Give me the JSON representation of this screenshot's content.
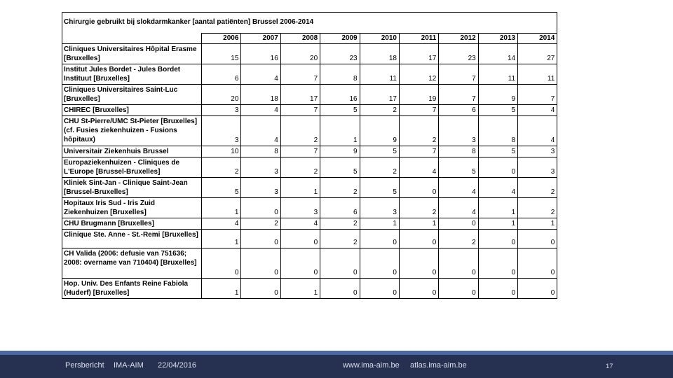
{
  "title": "Chirurgie gebruikt bij slokdarmkanker  [aantal patiënten] Brussel 2006-2014",
  "table": {
    "year_headers": [
      "2006",
      "2007",
      "2008",
      "2009",
      "2010",
      "2011",
      "2012",
      "2013",
      "2014"
    ],
    "rows": [
      {
        "label": "Cliniques Universitaires Hôpital Erasme [Bruxelles]",
        "lines": "double",
        "values": [
          15,
          16,
          20,
          23,
          18,
          17,
          23,
          14,
          27
        ]
      },
      {
        "label": "Institut Jules Bordet - Jules Bordet Instituut  [Bruxelles]",
        "lines": "double",
        "values": [
          6,
          4,
          7,
          8,
          11,
          12,
          7,
          11,
          11
        ]
      },
      {
        "label": "Cliniques Universitaires Saint-Luc [Bruxelles]",
        "lines": "double",
        "values": [
          20,
          18,
          17,
          16,
          17,
          19,
          7,
          9,
          7
        ]
      },
      {
        "label": "CHIREC [Bruxelles]",
        "lines": "single",
        "values": [
          3,
          4,
          7,
          5,
          2,
          7,
          6,
          5,
          4
        ]
      },
      {
        "label": "CHU St-Pierre/UMC St-Pieter [Bruxelles] (cf. Fusies ziekenhuizen - Fusions hôpitaux)",
        "lines": "triple",
        "values": [
          3,
          4,
          2,
          1,
          9,
          2,
          3,
          8,
          4
        ]
      },
      {
        "label": "Universitair Ziekenhuis Brussel",
        "lines": "single",
        "values": [
          10,
          8,
          7,
          9,
          5,
          7,
          8,
          5,
          3
        ]
      },
      {
        "label": "Europaziekenhuizen - Cliniques de L'Europe [Brussel-Bruxelles]",
        "lines": "double",
        "values": [
          2,
          3,
          2,
          5,
          2,
          4,
          5,
          0,
          3
        ]
      },
      {
        "label": "Kliniek Sint-Jan -  Clinique Saint-Jean [Brussel-Bruxelles]",
        "lines": "double",
        "values": [
          5,
          3,
          1,
          2,
          5,
          0,
          4,
          4,
          2
        ]
      },
      {
        "label": "Hopitaux Iris Sud - Iris Zuid Ziekenhuizen  [Bruxelles]",
        "lines": "double",
        "values": [
          1,
          0,
          3,
          6,
          3,
          2,
          4,
          1,
          2
        ]
      },
      {
        "label": "CHU Brugmann  [Bruxelles]",
        "lines": "single",
        "values": [
          4,
          2,
          4,
          2,
          1,
          1,
          0,
          1,
          1
        ]
      },
      {
        "label": "Clinique Ste. Anne - St.-Remi [Bruxelles]",
        "lines": "double",
        "values": [
          1,
          0,
          0,
          2,
          0,
          0,
          2,
          0,
          0
        ]
      },
      {
        "label": "CH Valida (2006: defusie van 751636; 2008: overname van 710404) [Bruxelles]",
        "lines": "triple",
        "values": [
          0,
          0,
          0,
          0,
          0,
          0,
          0,
          0,
          0
        ]
      },
      {
        "label": "Hop. Univ. Des Enfants Reine Fabiola (Huderf) [Bruxelles]",
        "lines": "double",
        "values": [
          1,
          0,
          1,
          0,
          0,
          0,
          0,
          0,
          0
        ]
      }
    ]
  },
  "chart_data": {
    "type": "table",
    "title": "Chirurgie gebruikt bij slokdarmkanker  [aantal patiënten] Brussel 2006-2014",
    "categories": [
      "2006",
      "2007",
      "2008",
      "2009",
      "2010",
      "2011",
      "2012",
      "2013",
      "2014"
    ],
    "series": [
      {
        "name": "Cliniques Universitaires Hôpital Erasme [Bruxelles]",
        "values": [
          15,
          16,
          20,
          23,
          18,
          17,
          23,
          14,
          27
        ]
      },
      {
        "name": "Institut Jules Bordet - Jules Bordet Instituut  [Bruxelles]",
        "values": [
          6,
          4,
          7,
          8,
          11,
          12,
          7,
          11,
          11
        ]
      },
      {
        "name": "Cliniques Universitaires Saint-Luc [Bruxelles]",
        "values": [
          20,
          18,
          17,
          16,
          17,
          19,
          7,
          9,
          7
        ]
      },
      {
        "name": "CHIREC [Bruxelles]",
        "values": [
          3,
          4,
          7,
          5,
          2,
          7,
          6,
          5,
          4
        ]
      },
      {
        "name": "CHU St-Pierre/UMC St-Pieter [Bruxelles] (cf. Fusies ziekenhuizen - Fusions hôpitaux)",
        "values": [
          3,
          4,
          2,
          1,
          9,
          2,
          3,
          8,
          4
        ]
      },
      {
        "name": "Universitair Ziekenhuis Brussel",
        "values": [
          10,
          8,
          7,
          9,
          5,
          7,
          8,
          5,
          3
        ]
      },
      {
        "name": "Europaziekenhuizen - Cliniques de L'Europe [Brussel-Bruxelles]",
        "values": [
          2,
          3,
          2,
          5,
          2,
          4,
          5,
          0,
          3
        ]
      },
      {
        "name": "Kliniek Sint-Jan -  Clinique Saint-Jean [Brussel-Bruxelles]",
        "values": [
          5,
          3,
          1,
          2,
          5,
          0,
          4,
          4,
          2
        ]
      },
      {
        "name": "Hopitaux Iris Sud - Iris Zuid Ziekenhuizen  [Bruxelles]",
        "values": [
          1,
          0,
          3,
          6,
          3,
          2,
          4,
          1,
          2
        ]
      },
      {
        "name": "CHU Brugmann  [Bruxelles]",
        "values": [
          4,
          2,
          4,
          2,
          1,
          1,
          0,
          1,
          1
        ]
      },
      {
        "name": "Clinique Ste. Anne - St.-Remi [Bruxelles]",
        "values": [
          1,
          0,
          0,
          2,
          0,
          0,
          2,
          0,
          0
        ]
      },
      {
        "name": "CH Valida (2006: defusie van 751636; 2008: overname van 710404) [Bruxelles]",
        "values": [
          0,
          0,
          0,
          0,
          0,
          0,
          0,
          0,
          0
        ]
      },
      {
        "name": "Hop. Univ. Des Enfants Reine Fabiola (Huderf) [Bruxelles]",
        "values": [
          1,
          0,
          1,
          0,
          0,
          0,
          0,
          0,
          0
        ]
      }
    ]
  },
  "footer": {
    "persbericht": "Persbericht",
    "org": "IMA-AIM",
    "date": "22/04/2016",
    "url_main": "www.ima-aim.be",
    "url_atlas": "atlas.ima-aim.be",
    "page_number": "17",
    "colors": {
      "stripe": "#4a69a2",
      "bar": "#263152"
    }
  }
}
